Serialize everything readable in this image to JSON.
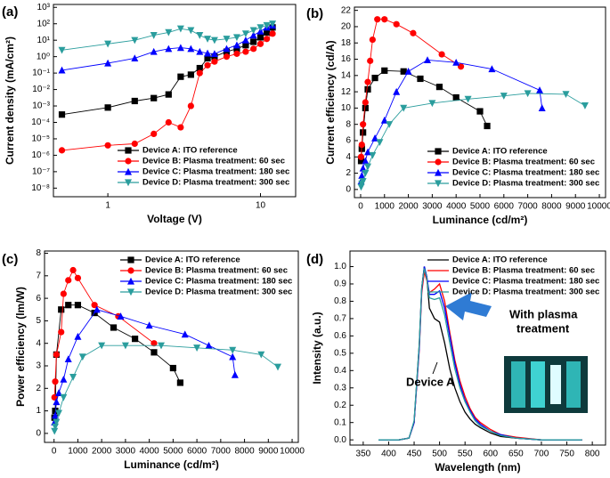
{
  "chart_data": [
    {
      "type": "line",
      "panel_label": "(a)",
      "xlabel": "Voltage (V)",
      "ylabel": "Current density (mA/cm²)",
      "xscale": "log",
      "yscale": "log",
      "xlim": [
        0.44,
        17
      ],
      "ylim": [
        3e-09,
        1500
      ],
      "xticks": [
        1,
        10
      ],
      "yticks": [
        {
          "value": 1e-08,
          "label": "10⁻⁸"
        },
        {
          "value": 1e-07,
          "label": "10⁻⁷"
        },
        {
          "value": 1e-06,
          "label": "10⁻⁶"
        },
        {
          "value": 1e-05,
          "label": "10⁻⁵"
        },
        {
          "value": 0.0001,
          "label": "10⁻⁴"
        },
        {
          "value": 0.001,
          "label": "10⁻³"
        },
        {
          "value": 0.01,
          "label": "10⁻²"
        },
        {
          "value": 0.1,
          "label": "10⁻¹"
        },
        {
          "value": 1,
          "label": "10⁰"
        },
        {
          "value": 10,
          "label": "10¹"
        },
        {
          "value": 100,
          "label": "10²"
        },
        {
          "value": 1000,
          "label": "10³"
        }
      ],
      "legend": "lower right",
      "x": [
        0.5,
        1,
        1.5,
        2,
        2.5,
        3,
        3.5,
        4,
        4.5,
        5,
        6,
        7,
        8,
        9,
        10,
        11,
        12
      ],
      "series": [
        {
          "name": "Device A: ITO reference",
          "color": "#000000",
          "marker": "square",
          "values": [
            0.0003,
            0.0008,
            0.002,
            0.003,
            0.005,
            0.06,
            0.08,
            0.2,
            0.8,
            1,
            2,
            3,
            5,
            8,
            15,
            30,
            60
          ]
        },
        {
          "name": "Device B: Plasma treatment: 60 sec",
          "color": "#ff0000",
          "marker": "circle",
          "values": [
            2e-06,
            4e-06,
            5e-06,
            2e-05,
            0.0001,
            5e-05,
            0.001,
            0.1,
            0.3,
            0.5,
            1,
            1.5,
            2,
            3,
            6,
            12,
            25
          ]
        },
        {
          "name": "Device C: Plasma treatment: 180 sec",
          "color": "#0000ff",
          "marker": "triangle-up",
          "values": [
            0.15,
            0.4,
            0.8,
            2,
            3,
            3.5,
            3,
            2,
            1.6,
            1.5,
            3,
            5,
            10,
            20,
            35,
            60,
            80
          ]
        },
        {
          "name": "Device D: Plasma treatment: 300 sec",
          "color": "#2a9d9d",
          "marker": "triangle-down",
          "values": [
            2.5,
            6,
            10,
            20,
            30,
            50,
            40,
            20,
            12,
            10,
            12,
            15,
            25,
            40,
            60,
            80,
            100
          ]
        }
      ]
    },
    {
      "type": "line",
      "panel_label": "(b)",
      "xlabel": "Luminance (cd/m²)",
      "ylabel": "Current efficiency (cd/A)",
      "xlim": [
        -260,
        10260
      ],
      "ylim": [
        -1,
        22.4
      ],
      "xticks": [
        0,
        1000,
        2000,
        3000,
        4000,
        5000,
        6000,
        7000,
        8000,
        9000,
        10000
      ],
      "yticks": [
        0,
        2,
        4,
        6,
        8,
        10,
        12,
        14,
        16,
        18,
        20,
        22
      ],
      "legend": "lower right",
      "series": [
        {
          "name": "Device A: ITO reference",
          "color": "#000000",
          "marker": "square",
          "x": [
            20,
            50,
            100,
            200,
            300,
            600,
            1000,
            1800,
            2500,
            3300,
            4000,
            5000,
            5300
          ],
          "values": [
            3.5,
            5,
            7,
            10,
            12.3,
            13.7,
            14.6,
            14.5,
            13.6,
            12.6,
            11.3,
            9.6,
            7.8
          ]
        },
        {
          "name": "Device B: Plasma treatment: 60 sec",
          "color": "#ff0000",
          "marker": "circle",
          "x": [
            20,
            50,
            100,
            200,
            300,
            400,
            500,
            700,
            1000,
            1500,
            2200,
            3400,
            4200
          ],
          "values": [
            4,
            5.5,
            8,
            10.7,
            13.2,
            15.8,
            18.4,
            20.9,
            20.9,
            20.3,
            19.2,
            16.6,
            15.1
          ]
        },
        {
          "name": "Device C: Plasma treatment: 180 sec",
          "color": "#0000ff",
          "marker": "triangle-up",
          "x": [
            20,
            50,
            100,
            200,
            300,
            600,
            1000,
            1500,
            2000,
            2800,
            4000,
            5500,
            7500,
            7600
          ],
          "values": [
            1,
            1.7,
            2.6,
            3.5,
            4.6,
            6.3,
            8.5,
            12,
            14.5,
            15.9,
            15.6,
            14.8,
            12.2,
            10
          ]
        },
        {
          "name": "Device D: Plasma treatment: 300 sec",
          "color": "#2a9d9d",
          "marker": "triangle-down",
          "x": [
            20,
            50,
            100,
            200,
            300,
            500,
            800,
            1200,
            1800,
            3000,
            4500,
            6000,
            7000,
            8600,
            9400
          ],
          "values": [
            0.3,
            0.7,
            1,
            2,
            2.8,
            4.2,
            5.8,
            8,
            10,
            10.6,
            11.1,
            11.5,
            11.8,
            11.7,
            10.3
          ]
        }
      ]
    },
    {
      "type": "line",
      "panel_label": "(c)",
      "xlabel": "Luminance (cd/m²)",
      "ylabel": "Power efficiency (lm/W)",
      "xlim": [
        -400,
        10260
      ],
      "ylim": [
        -0.4,
        8.1
      ],
      "xticks": [
        0,
        1000,
        2000,
        3000,
        4000,
        5000,
        6000,
        7000,
        8000,
        9000,
        10000
      ],
      "yticks": [
        0,
        1,
        2,
        3,
        4,
        5,
        6,
        7,
        8
      ],
      "legend": "upper right",
      "series": [
        {
          "name": "Device A: ITO reference",
          "color": "#000000",
          "marker": "square",
          "x": [
            20,
            50,
            100,
            300,
            600,
            1000,
            1700,
            2500,
            3400,
            4200,
            5000,
            5300
          ],
          "values": [
            0.7,
            1,
            3.5,
            5.5,
            5.7,
            5.7,
            5.35,
            4.7,
            4.2,
            3.6,
            2.9,
            2.25
          ]
        },
        {
          "name": "Device B: Plasma treatment: 60 sec",
          "color": "#ff0000",
          "marker": "circle",
          "x": [
            20,
            50,
            100,
            300,
            400,
            600,
            800,
            1000,
            1700,
            2700,
            4200
          ],
          "values": [
            1.6,
            2.3,
            3.5,
            4.5,
            6.2,
            6.8,
            7.25,
            6.9,
            5.7,
            5.2,
            4
          ]
        },
        {
          "name": "Device C: Plasma treatment: 180 sec",
          "color": "#0000ff",
          "marker": "triangle-up",
          "x": [
            20,
            50,
            100,
            200,
            400,
            600,
            1000,
            1800,
            2800,
            4000,
            5500,
            6500,
            7500,
            7600
          ],
          "values": [
            0.5,
            0.8,
            1.4,
            1.8,
            2.4,
            3.3,
            4.3,
            5.5,
            5.2,
            4.8,
            4.4,
            3.9,
            3.4,
            2.6
          ]
        },
        {
          "name": "Device D: Plasma treatment: 300 sec",
          "color": "#2a9d9d",
          "marker": "triangle-down",
          "x": [
            20,
            50,
            100,
            200,
            400,
            800,
            1200,
            2000,
            3000,
            4500,
            6000,
            7500,
            8700,
            9400
          ],
          "values": [
            0.1,
            0.3,
            0.5,
            0.9,
            1.6,
            2.5,
            3.4,
            3.9,
            3.9,
            3.9,
            3.8,
            3.7,
            3.5,
            2.95
          ]
        }
      ]
    },
    {
      "type": "line",
      "panel_label": "(d)",
      "xlabel": "Wavelength (nm)",
      "ylabel": "Intensity (a.u.)",
      "xlim": [
        324,
        826
      ],
      "ylim": [
        -0.03,
        1.09
      ],
      "xticks": [
        350,
        400,
        450,
        500,
        550,
        600,
        650,
        700,
        750,
        800
      ],
      "yticks": [
        {
          "value": 0,
          "label": "0.0"
        },
        0.1,
        0.2,
        0.3,
        0.4,
        0.5,
        0.6,
        0.7,
        0.8,
        0.9,
        {
          "value": 1,
          "label": "1.0"
        }
      ],
      "legend": "upper right",
      "annotations": [
        "With plasma",
        "treatment",
        "Device A"
      ],
      "x": [
        380,
        420,
        440,
        450,
        460,
        465,
        470,
        475,
        480,
        490,
        500,
        510,
        520,
        530,
        540,
        550,
        560,
        570,
        580,
        600,
        620,
        650,
        700,
        780
      ],
      "series": [
        {
          "name": "Device A: ITO reference",
          "color": "#000000",
          "values": [
            0,
            0,
            0.01,
            0.1,
            0.55,
            0.88,
            1.0,
            0.94,
            0.76,
            0.7,
            0.68,
            0.56,
            0.41,
            0.3,
            0.22,
            0.16,
            0.12,
            0.09,
            0.07,
            0.04,
            0.02,
            0.01,
            0,
            0
          ]
        },
        {
          "name": "Device B: Plasma treatment: 60 sec",
          "color": "#ff0000",
          "values": [
            0,
            0,
            0.01,
            0.1,
            0.52,
            0.85,
            0.97,
            0.92,
            0.85,
            0.87,
            0.9,
            0.8,
            0.62,
            0.46,
            0.34,
            0.25,
            0.18,
            0.13,
            0.1,
            0.06,
            0.03,
            0.015,
            0,
            0
          ]
        },
        {
          "name": "Device C: Plasma treatment: 180 sec",
          "color": "#0000ff",
          "values": [
            0,
            0,
            0.01,
            0.1,
            0.53,
            0.87,
            1.0,
            0.94,
            0.84,
            0.84,
            0.86,
            0.76,
            0.6,
            0.44,
            0.32,
            0.23,
            0.17,
            0.12,
            0.09,
            0.05,
            0.03,
            0.01,
            0,
            0
          ]
        },
        {
          "name": "Device D: Plasma treatment: 300 sec",
          "color": "#2a9d9d",
          "values": [
            0,
            0,
            0.01,
            0.11,
            0.55,
            0.88,
            0.99,
            0.93,
            0.82,
            0.81,
            0.82,
            0.72,
            0.56,
            0.41,
            0.3,
            0.22,
            0.16,
            0.11,
            0.08,
            0.05,
            0.025,
            0.01,
            0,
            0
          ]
        }
      ]
    }
  ]
}
